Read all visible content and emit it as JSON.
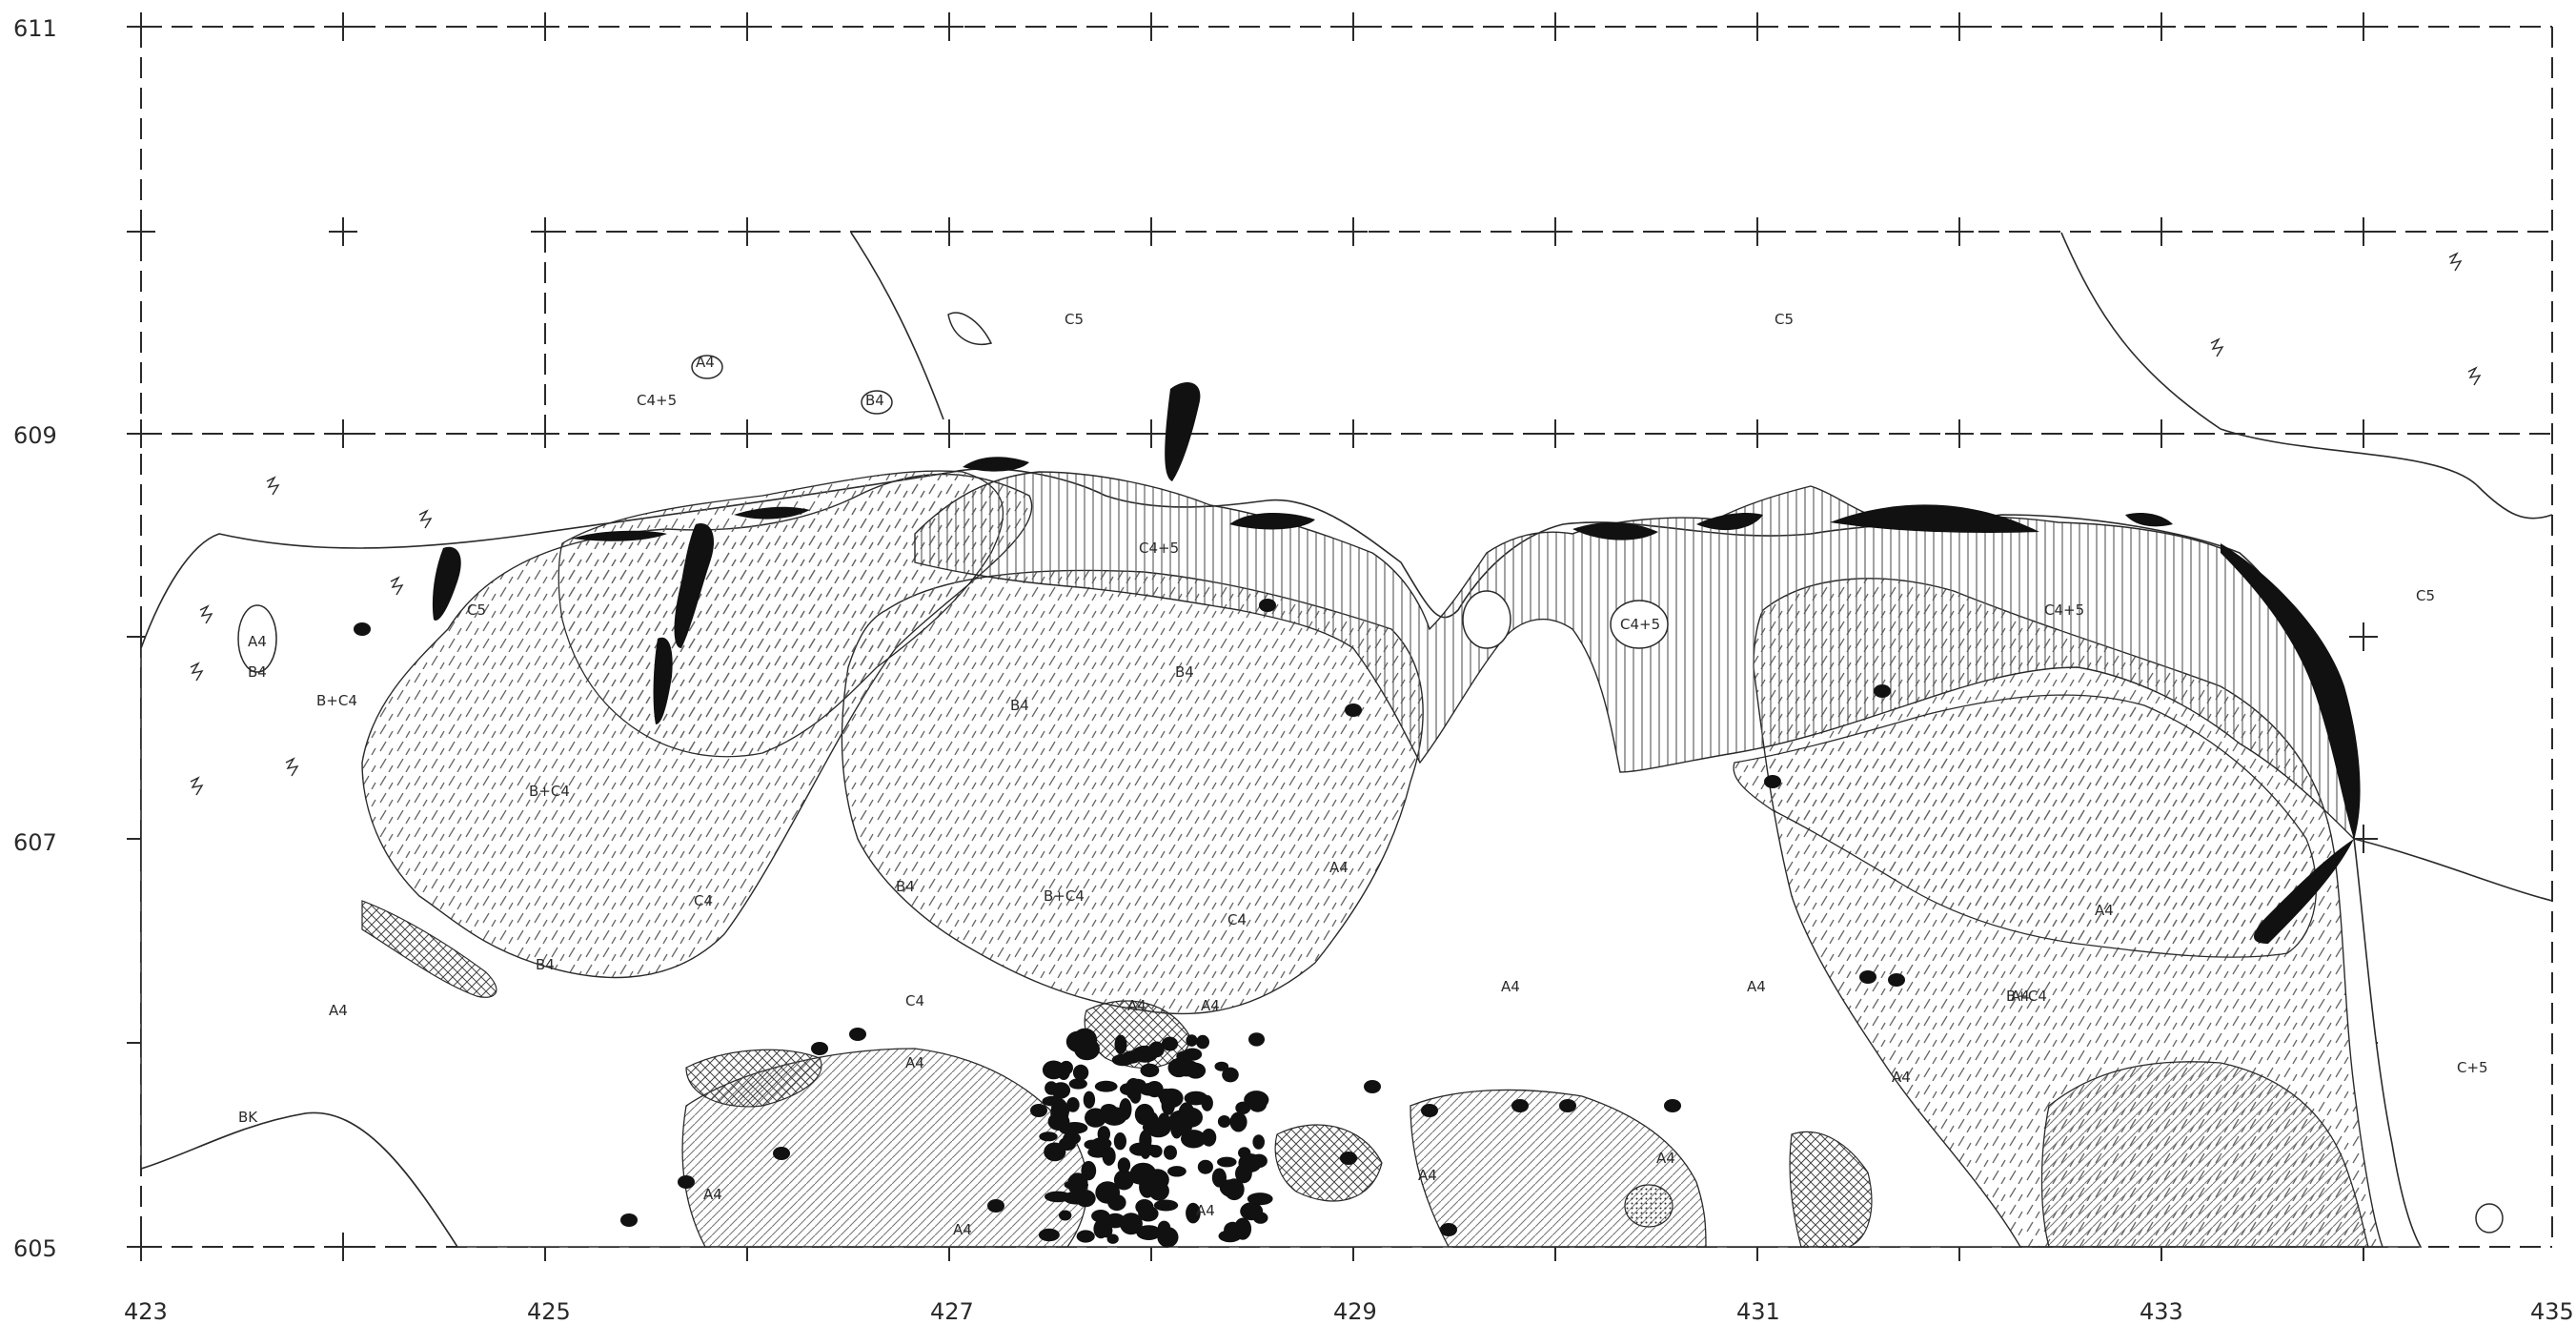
{
  "map": {
    "x_ticks": [
      "423",
      "425",
      "427",
      "429",
      "431",
      "433",
      "435"
    ],
    "y_ticks": [
      "611",
      "609",
      "607",
      "605"
    ],
    "unit_labels": [
      "C5",
      "C4+5",
      "A4",
      "B4",
      "C5",
      "A4",
      "B4",
      "B+C4",
      "C5",
      "B+C4",
      "C4+5",
      "B4",
      "C4+5",
      "C5",
      "C4+5",
      "B4",
      "C4",
      "B+C4",
      "B4",
      "A4",
      "C4",
      "A4",
      "A4",
      "B4",
      "C4",
      "A4",
      "A4",
      "A4",
      "A4",
      "A4",
      "A4",
      "A4",
      "A4",
      "A4",
      "A4",
      "B+C4",
      "A4",
      "C+5",
      "BK",
      "A4"
    ],
    "colors": {
      "ink": "#1a1a1a",
      "paper": "#ffffff",
      "hatch": "#555555"
    }
  }
}
